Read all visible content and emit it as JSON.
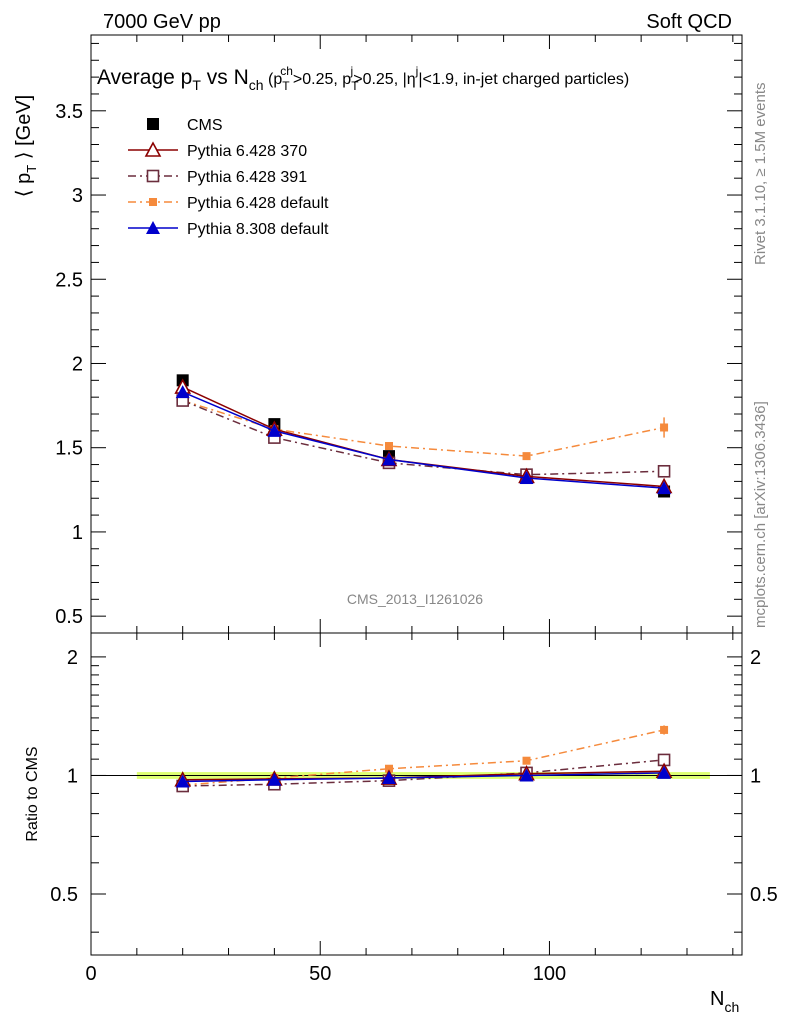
{
  "header": {
    "left": "7000 GeV pp",
    "right": "Soft QCD"
  },
  "side_labels": {
    "rivet": "Rivet 3.1.10, ≥ 1.5M events",
    "mcplots": "mcplots.cern.ch [arXiv:1306.3436]"
  },
  "watermark": "CMS_2013_I1261026",
  "chart_data": {
    "type": "line",
    "title": "Average p_T vs N_ch (p_T^ch>0.25, p_T^j>0.25, |η^j|<1.9, in-jet charged particles)",
    "title_parts": {
      "a": "Average p",
      "a_sub": "T",
      "b": " vs N",
      "b_sub": "ch",
      "c": " (p",
      "c_sub": "T",
      "c_sup": "ch",
      "d": ">0.25, p",
      "d_sub": "T",
      "d_sup": "j",
      "e": ">0.25, |η",
      "e_sup": "j",
      "f": "|<1.9, in-jet charged particles)"
    },
    "ylabel": {
      "a": "⟨ p",
      "sub": "T",
      "b": " ⟩ [GeV]"
    },
    "xlabel": {
      "a": "N",
      "sub": "ch"
    },
    "ratio_ylabel": "Ratio to CMS",
    "xlim": [
      0,
      142
    ],
    "ylim": [
      0.4,
      3.95
    ],
    "ratio_ylim": [
      0.35,
      2.3
    ],
    "xticks": [
      "0",
      "50",
      "100"
    ],
    "yticks": [
      "0.5",
      "1",
      "1.5",
      "2",
      "2.5",
      "3",
      "3.5"
    ],
    "ratio_yticks": [
      "0.5",
      "1",
      "2"
    ],
    "x": [
      20,
      40,
      65,
      95,
      125
    ],
    "series": [
      {
        "name": "CMS",
        "color": "#000000",
        "marker": "square",
        "line": "none",
        "values": [
          1.9,
          1.64,
          1.45,
          1.32,
          1.24
        ],
        "ratio": [
          1.0,
          1.0,
          1.0,
          1.0,
          1.0
        ]
      },
      {
        "name": "Pythia 6.428 370",
        "color": "#8b0000",
        "marker": "triangle-open",
        "line": "solid",
        "values": [
          1.86,
          1.61,
          1.43,
          1.33,
          1.27
        ],
        "ratio": [
          0.975,
          0.98,
          0.985,
          1.01,
          1.025
        ]
      },
      {
        "name": "Pythia 6.428 391",
        "color": "#6b2d3d",
        "marker": "square-open",
        "line": "dashdot",
        "values": [
          1.78,
          1.56,
          1.41,
          1.34,
          1.36
        ],
        "ratio": [
          0.94,
          0.95,
          0.97,
          1.015,
          1.095
        ]
      },
      {
        "name": "Pythia 6.428 default",
        "color": "#f58a3c",
        "marker": "square-small",
        "line": "dashdot",
        "values": [
          1.78,
          1.61,
          1.51,
          1.45,
          1.62
        ],
        "values_err": [
          0,
          0,
          0,
          0,
          0.06
        ],
        "ratio": [
          0.945,
          0.985,
          1.04,
          1.09,
          1.305
        ],
        "ratio_err": [
          0,
          0,
          0,
          0,
          0.035
        ]
      },
      {
        "name": "Pythia 8.308 default",
        "color": "#0000cc",
        "marker": "triangle",
        "line": "solid",
        "values": [
          1.83,
          1.6,
          1.43,
          1.32,
          1.26
        ],
        "ratio": [
          0.965,
          0.975,
          0.985,
          1.0,
          1.015
        ]
      }
    ],
    "band_color": "#d8ff5a"
  }
}
